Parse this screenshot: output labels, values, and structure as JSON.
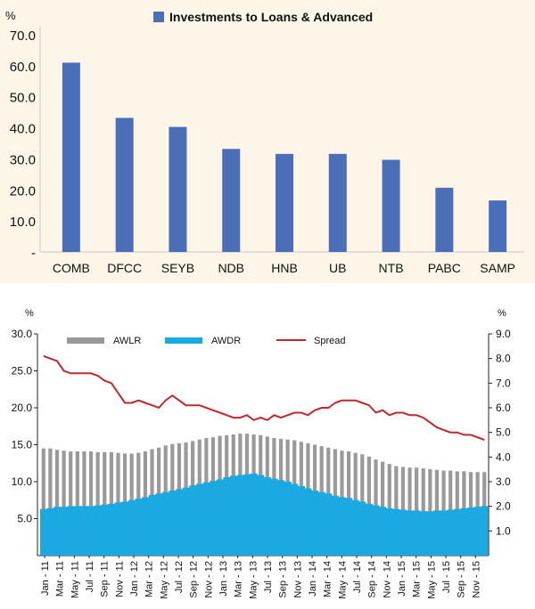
{
  "chart_data": [
    {
      "type": "bar",
      "title": "Investments to Loans & Advanced",
      "ylabel": "%",
      "ylim": [
        0,
        70
      ],
      "yticks": [
        "-",
        "10.0",
        "20.0",
        "30.0",
        "40.0",
        "50.0",
        "60.0",
        "70.0"
      ],
      "categories": [
        "COMB",
        "DFCC",
        "SEYB",
        "NDB",
        "HNB",
        "UB",
        "NTB",
        "PABC",
        "SAMP"
      ],
      "values": [
        61.0,
        43.2,
        40.3,
        33.2,
        31.6,
        31.6,
        29.7,
        20.7,
        16.6
      ],
      "legend": "top",
      "color": "#4a6fb8"
    },
    {
      "type": "bar+line",
      "ylabel_left": "%",
      "ylabel_right": "%",
      "ylim_left": [
        0,
        30
      ],
      "ylim_right": [
        0,
        9
      ],
      "yticks_left": [
        "5.0",
        "10.0",
        "15.0",
        "20.0",
        "25.0",
        "30.0"
      ],
      "yticks_right": [
        "1.0",
        "2.0",
        "3.0",
        "4.0",
        "5.0",
        "6.0",
        "7.0",
        "8.0",
        "9.0"
      ],
      "x_tick_labels": [
        "Jan - 11",
        "Mar - 11",
        "May - 11",
        "Jul - 11",
        "Sep - 11",
        "Nov - 11",
        "Jan - 12",
        "Mar - 12",
        "May - 12",
        "Jul - 12",
        "Sep - 12",
        "Nov - 12",
        "Jan - 13",
        "Mar - 13",
        "May - 13",
        "Jul - 13",
        "Sep - 13",
        "Nov - 13",
        "Jan - 14",
        "Mar - 14",
        "May - 14",
        "Jul - 14",
        "Sep - 14",
        "Nov - 14",
        "Jan - 15",
        "Mar - 15",
        "May - 15",
        "Jul - 15",
        "Sep - 15",
        "Nov - 15"
      ],
      "legend": [
        "AWLR",
        "AWDR",
        "Spread"
      ],
      "series": [
        {
          "name": "AWLR",
          "kind": "bar",
          "axis": "left",
          "color": "#999999",
          "values": [
            14.5,
            14.5,
            14.3,
            14.2,
            14.1,
            14.1,
            14.1,
            14.1,
            14.0,
            14.0,
            14.0,
            13.9,
            13.8,
            13.8,
            13.9,
            14.1,
            14.4,
            14.6,
            14.9,
            15.1,
            15.2,
            15.3,
            15.5,
            15.7,
            15.9,
            16.0,
            16.2,
            16.3,
            16.4,
            16.5,
            16.5,
            16.4,
            16.3,
            16.1,
            15.9,
            15.8,
            15.7,
            15.6,
            15.4,
            15.2,
            15.0,
            14.8,
            14.6,
            14.4,
            14.2,
            14.1,
            13.9,
            13.7,
            13.4,
            13.0,
            12.7,
            12.4,
            12.1,
            12.0,
            11.9,
            11.9,
            11.8,
            11.7,
            11.6,
            11.5,
            11.5,
            11.4,
            11.4,
            11.3,
            11.3,
            11.3
          ]
        },
        {
          "name": "AWDR",
          "kind": "bar",
          "axis": "left",
          "color": "#1aa9e0",
          "values": [
            6.3,
            6.4,
            6.6,
            6.6,
            6.7,
            6.7,
            6.7,
            6.7,
            6.8,
            6.9,
            7.0,
            7.2,
            7.3,
            7.5,
            7.7,
            7.9,
            8.2,
            8.4,
            8.6,
            8.8,
            9.0,
            9.2,
            9.5,
            9.7,
            9.9,
            10.1,
            10.3,
            10.6,
            10.8,
            10.9,
            11.0,
            11.1,
            10.9,
            10.6,
            10.4,
            10.2,
            10.0,
            9.7,
            9.4,
            9.1,
            8.8,
            8.6,
            8.4,
            8.1,
            7.9,
            7.8,
            7.5,
            7.3,
            7.0,
            6.8,
            6.6,
            6.4,
            6.3,
            6.2,
            6.1,
            6.1,
            6.0,
            6.0,
            6.1,
            6.1,
            6.2,
            6.3,
            6.4,
            6.5,
            6.6,
            6.7
          ]
        },
        {
          "name": "Spread",
          "kind": "line",
          "axis": "right",
          "color": "#c0282e",
          "values": [
            8.1,
            8.0,
            7.9,
            7.5,
            7.4,
            7.4,
            7.4,
            7.4,
            7.3,
            7.1,
            7.0,
            6.6,
            6.2,
            6.2,
            6.3,
            6.2,
            6.1,
            6.0,
            6.3,
            6.5,
            6.3,
            6.1,
            6.1,
            6.1,
            6.0,
            5.9,
            5.8,
            5.7,
            5.6,
            5.6,
            5.7,
            5.5,
            5.6,
            5.5,
            5.7,
            5.6,
            5.7,
            5.8,
            5.8,
            5.7,
            5.9,
            6.0,
            6.0,
            6.2,
            6.3,
            6.3,
            6.3,
            6.2,
            6.1,
            5.8,
            5.9,
            5.7,
            5.8,
            5.8,
            5.7,
            5.7,
            5.6,
            5.4,
            5.2,
            5.1,
            5.0,
            5.0,
            4.9,
            4.9,
            4.8,
            4.7
          ]
        }
      ]
    }
  ]
}
